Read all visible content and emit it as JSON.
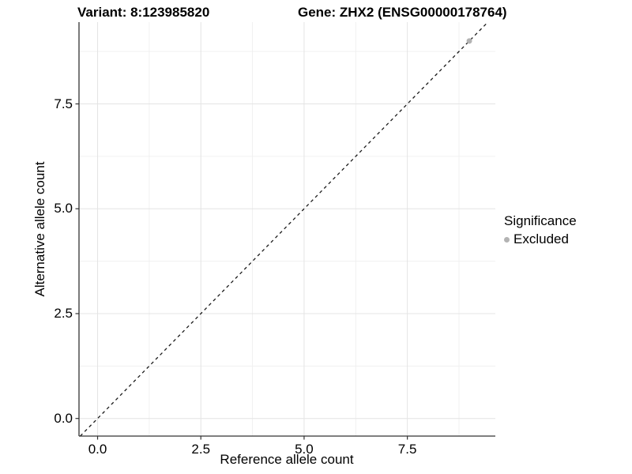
{
  "titles": {
    "variant": "Variant: 8:123985820",
    "gene": "Gene: ZHX2 (ENSG00000178764)"
  },
  "legend": {
    "title": "Significance",
    "items": [
      {
        "label": "Excluded",
        "color": "#b3b3b3"
      }
    ]
  },
  "chart_data": {
    "type": "scatter",
    "title": "Variant: 8:123985820    Gene: ZHX2 (ENSG00000178764)",
    "xlabel": "Reference allele count",
    "ylabel": "Alternative allele count",
    "x_ticks": [
      0.0,
      2.5,
      5.0,
      7.5
    ],
    "x_tick_labels": [
      "0.0",
      "2.5",
      "5.0",
      "7.5"
    ],
    "y_ticks": [
      0.0,
      2.5,
      5.0,
      7.5
    ],
    "y_tick_labels": [
      "0.0",
      "2.5",
      "5.0",
      "7.5"
    ],
    "x_minor_ticks": [
      1.25,
      3.75,
      6.25,
      8.75
    ],
    "y_minor_ticks": [
      1.25,
      3.75,
      6.25,
      8.75
    ],
    "xlim": [
      -0.45,
      9.63
    ],
    "ylim": [
      -0.42,
      9.45
    ],
    "grid": {
      "major_color": "#e4e4e4",
      "minor_color": "#f0f0f0",
      "on": true
    },
    "axis_color": "#333333",
    "reference_line": {
      "slope": 1,
      "intercept": 0,
      "style": "dashed",
      "color": "#1a1a1a"
    },
    "series": [
      {
        "name": "Excluded",
        "color": "#b3b3b3",
        "points": [
          {
            "x": 9,
            "y": 9
          }
        ]
      }
    ],
    "legend_position": "right",
    "legend_title": "Significance"
  }
}
